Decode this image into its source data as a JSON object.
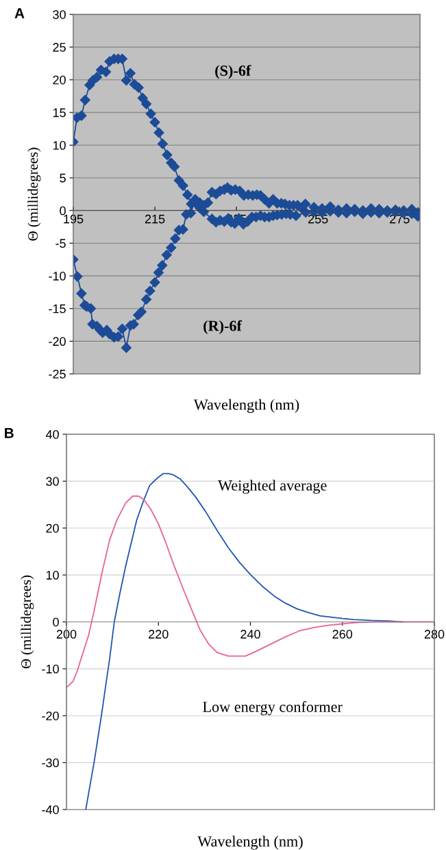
{
  "chart_data": [
    {
      "type": "line",
      "title": "A",
      "xlabel": "Wavelength (nm)",
      "ylabel": "Θ (millidegrees)",
      "xlim": [
        195,
        280
      ],
      "xticks": [
        195,
        215,
        235,
        255,
        275
      ],
      "ylim": [
        -25,
        30
      ],
      "yticks": [
        -25,
        -20,
        -15,
        -10,
        -5,
        0,
        5,
        10,
        15,
        20,
        25,
        30
      ],
      "grid": "y",
      "marker": "diamond",
      "line_style": "solid",
      "annotations": [
        "(S)-6f",
        "(R)-6f"
      ],
      "series": [
        {
          "color": "#1c4c98",
          "x": [
            195,
            195.9,
            197,
            197.9,
            199,
            199.8,
            200.8,
            201.8,
            203,
            203.9,
            205,
            206,
            207,
            208,
            209,
            210,
            211,
            212,
            212.9,
            214,
            215,
            216,
            216.9,
            218,
            219,
            219.8,
            220.9,
            221.9,
            223,
            223.9,
            224.9,
            226,
            227,
            229,
            230,
            231,
            232,
            233,
            233.7,
            234.6,
            235.6,
            236.7,
            237.7,
            238.8,
            239.8,
            240.9,
            241.9,
            243,
            244,
            245,
            246.1,
            247.2,
            248.2,
            249.6,
            252,
            254,
            256,
            258,
            260,
            262,
            264,
            266,
            268,
            270,
            272,
            274,
            276,
            278,
            279.5
          ],
          "values": [
            10.5,
            14.2,
            14.5,
            16.9,
            19.2,
            19.9,
            20.4,
            21.5,
            21.2,
            22.8,
            23.2,
            23.2,
            23.2,
            19.9,
            21.0,
            19.3,
            18.8,
            17.2,
            16.3,
            14.8,
            13.5,
            11.9,
            10.2,
            8.5,
            7.3,
            6.7,
            4.6,
            3.8,
            2.4,
            1.0,
            1.2,
            0.4,
            -0.2,
            -1.3,
            -1.8,
            -1.5,
            -1.7,
            -1.2,
            -1.8,
            -2.0,
            -1.2,
            -2.1,
            -1.7,
            -1.0,
            -1.0,
            -0.8,
            -1.0,
            -1.0,
            -0.8,
            -0.7,
            -0.6,
            -0.5,
            -0.6,
            -0.8,
            -0.3,
            -0.2,
            -0.3,
            -0.1,
            -0.3,
            -0.4,
            -0.2,
            -0.5,
            -0.3,
            -0.4,
            -0.3,
            -0.2,
            -0.4,
            -0.5,
            -0.9
          ]
        },
        {
          "color": "#1c4c98",
          "x": [
            195,
            196,
            197,
            197.8,
            198.3,
            199.3,
            199.7,
            200.8,
            201.6,
            202.2,
            203.2,
            203.9,
            205,
            206,
            207,
            208,
            209,
            209.8,
            210.9,
            211.7,
            212.9,
            213.8,
            215,
            215.9,
            216.8,
            217.9,
            219,
            220,
            220.9,
            221.9,
            222.7,
            223.8,
            224.9,
            226,
            227,
            228,
            229,
            230,
            231,
            232,
            232.8,
            233.7,
            234.7,
            235.8,
            236.8,
            237.9,
            239,
            240,
            240.9,
            241.9,
            243,
            244,
            245,
            246,
            246.9,
            248,
            249,
            250,
            250.9,
            251.9,
            254,
            256,
            258,
            260,
            262,
            264,
            266,
            268,
            270,
            272,
            274,
            276,
            278,
            279.5
          ],
          "values": [
            -7.5,
            -10.1,
            -12.7,
            -14.5,
            -14.7,
            -15.0,
            -17.4,
            -17.7,
            -18.3,
            -18.7,
            -18.3,
            -18.9,
            -19.4,
            -19.3,
            -18.1,
            -21.0,
            -17.6,
            -17.4,
            -16.0,
            -15.5,
            -13.6,
            -12.3,
            -11.0,
            -9.5,
            -8.4,
            -6.8,
            -5.7,
            -4.3,
            -3.0,
            -2.9,
            -0.6,
            -0.4,
            1.7,
            1.2,
            0.8,
            1.2,
            2.8,
            2.5,
            3.0,
            3.2,
            3.5,
            3.1,
            3.2,
            3.0,
            2.3,
            2.4,
            2.3,
            2.4,
            2.3,
            1.7,
            1.1,
            1.7,
            1.1,
            1.1,
            1.0,
            0.8,
            0.8,
            0.8,
            0.4,
            1.0,
            0.5,
            0.3,
            0.6,
            0.1,
            0.3,
            0.2,
            0.0,
            0.3,
            0.2,
            0.0,
            0.1,
            0.0,
            0.2,
            -0.3
          ]
        }
      ]
    },
    {
      "type": "line",
      "title": "B",
      "xlabel": "Wavelength (nm)",
      "ylabel": "Θ (millidegrees)",
      "xlim": [
        200,
        280
      ],
      "xticks": [
        200,
        220,
        240,
        260,
        280
      ],
      "ylim": [
        -40,
        40
      ],
      "yticks": [
        -40,
        -30,
        -20,
        -10,
        0,
        10,
        20,
        30,
        40
      ],
      "grid": "y",
      "line_style": "solid",
      "annotations": [
        "Weighted average",
        "Low energy conformer"
      ],
      "series": [
        {
          "color": "#2055b0",
          "x": [
            204.2,
            206,
            207.6,
            208.8,
            209.4,
            210.4,
            211.6,
            212.9,
            214.1,
            215.3,
            216.6,
            218.1,
            219.7,
            221,
            222.2,
            223.1,
            224.7,
            226.2,
            228.1,
            230.2,
            232.7,
            235.2,
            237.7,
            240.2,
            242.7,
            245.2,
            247.6,
            250.1,
            252.6,
            255.1,
            257.6,
            260.1,
            262.5,
            266.3,
            270,
            273.1
          ],
          "values": [
            -40,
            -30,
            -20,
            -11.8,
            -7.8,
            0,
            6.0,
            12.0,
            16.9,
            21.8,
            25.4,
            29.1,
            30.6,
            31.6,
            31.6,
            31.4,
            30.5,
            28.9,
            26.6,
            23.6,
            19.6,
            15.8,
            12.6,
            9.9,
            7.5,
            5.5,
            4.0,
            2.8,
            2.0,
            1.3,
            1.0,
            0.7,
            0.5,
            0.3,
            0.2,
            0
          ]
        },
        {
          "color": "#e8609a",
          "x": [
            200,
            201.4,
            202.3,
            203.2,
            204.8,
            206,
            207.6,
            209.4,
            211,
            212.9,
            214.4,
            215.7,
            216.9,
            218.4,
            220,
            221.6,
            223.4,
            225.3,
            227.1,
            229,
            230.9,
            232.7,
            235.2,
            238.9,
            241.4,
            244.5,
            247.6,
            250.7,
            253.9,
            257,
            260.1,
            263.8,
            267.5,
            272.5,
            280
          ],
          "values": [
            -14.0,
            -12.7,
            -10.6,
            -7.8,
            -2.9,
            2.3,
            9.9,
            17.5,
            21.8,
            25.4,
            26.8,
            26.8,
            26.0,
            23.9,
            20.9,
            16.9,
            12.0,
            7.2,
            2.9,
            -1.6,
            -4.7,
            -6.5,
            -7.3,
            -7.3,
            -6.2,
            -4.7,
            -3.2,
            -1.9,
            -1.2,
            -0.7,
            -0.4,
            -0.1,
            0,
            0,
            0
          ]
        }
      ]
    }
  ]
}
